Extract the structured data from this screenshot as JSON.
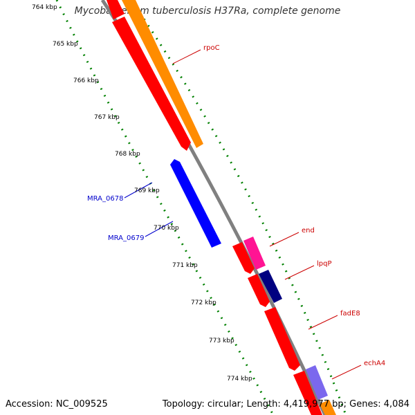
{
  "map": {
    "title": "Mycobacterium tuberculosis H37Ra, complete genome",
    "accession_label": "Accession: NC_009525",
    "summary_label": "Topology: circular; Length: 4,419,977 bp; Genes: 4,084",
    "colors": {
      "forward_gene": "#ff0000",
      "reverse_gene": "#0000ff",
      "rpoC": "#ff8c00",
      "end": "#ff1493",
      "lpqP": "#000080",
      "echA4": "#7b68ee",
      "backbone": "#808080",
      "tick": "#008000",
      "forward_label": "#cc0000",
      "reverse_label": "#0000cc"
    },
    "ticks": [
      "764 kbp",
      "765 kbp",
      "766 kbp",
      "767 kbp",
      "768 kbp",
      "769 kbp",
      "770 kbp",
      "771 kbp",
      "772 kbp",
      "773 kbp",
      "774 kbp"
    ],
    "gene_labels": [
      {
        "name": "rpoC",
        "strand": "forward"
      },
      {
        "name": "end",
        "strand": "forward"
      },
      {
        "name": "lpqP",
        "strand": "forward"
      },
      {
        "name": "fadE8",
        "strand": "forward"
      },
      {
        "name": "echA4",
        "strand": "forward"
      },
      {
        "name": "MRA_0678",
        "strand": "reverse"
      },
      {
        "name": "MRA_0679",
        "strand": "reverse"
      }
    ]
  }
}
